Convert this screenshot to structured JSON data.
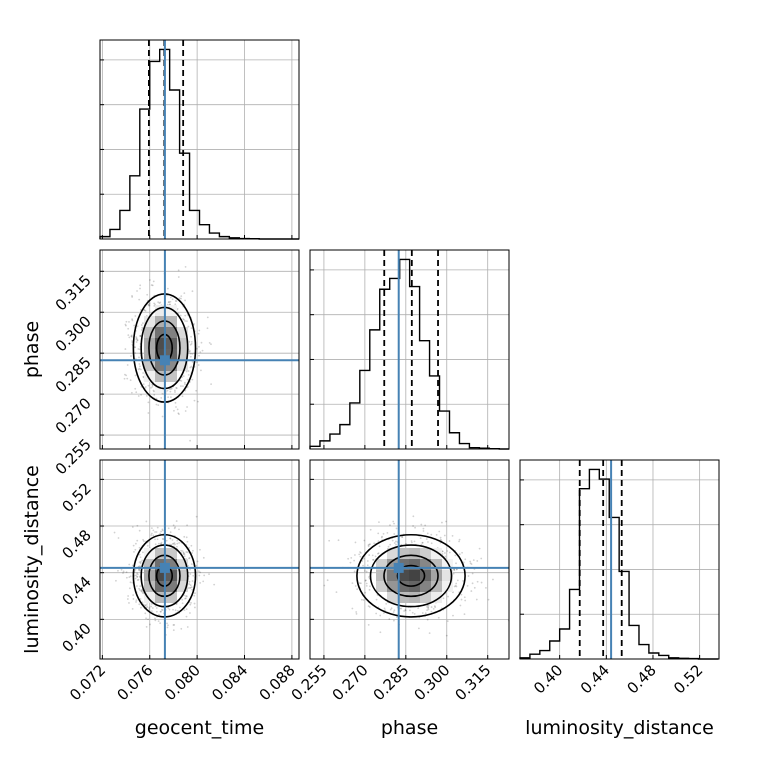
{
  "figure": {
    "type": "corner"
  },
  "colors": {
    "truth": "#4682b4",
    "hist": "#000000",
    "grid": "#b0b0b0",
    "quantile": "#000000",
    "contour": "#000000"
  },
  "chart_data": {
    "type": "corner",
    "parameters": [
      "geocent_time",
      "phase",
      "luminosity_distance"
    ],
    "axis_labels": {
      "geocent_time": "geocent_time",
      "phase": "phase",
      "luminosity_distance": "luminosity_distance"
    },
    "ranges": {
      "geocent_time": [
        0.0718,
        0.0886
      ],
      "phase": [
        0.2499,
        0.3228
      ],
      "luminosity_distance": [
        0.366,
        0.5366
      ]
    },
    "ticks": {
      "geocent_time": [
        "0.072",
        "0.076",
        "0.080",
        "0.084",
        "0.088"
      ],
      "phase": [
        "0.255",
        "0.270",
        "0.285",
        "0.300",
        "0.315"
      ],
      "luminosity_distance": [
        "0.40",
        "0.44",
        "0.48",
        "0.52"
      ]
    },
    "truths": {
      "geocent_time": 0.07728,
      "phase": 0.2824,
      "luminosity_distance": 0.4441
    },
    "quantiles": {
      "geocent_time": [
        0.07593,
        0.07723,
        0.07882
      ],
      "phase": [
        0.2771,
        0.2872,
        0.2968
      ],
      "luminosity_distance": [
        0.4172,
        0.4373,
        0.4532
      ]
    },
    "histograms": {
      "geocent_time": {
        "edges": [
          0.0718,
          0.07264,
          0.07348,
          0.07432,
          0.07516,
          0.076,
          0.07684,
          0.07768,
          0.07852,
          0.07936,
          0.0802,
          0.08104,
          0.08188,
          0.08272,
          0.08356,
          0.0844,
          0.08524,
          0.08608,
          0.08692,
          0.08776,
          0.0886
        ],
        "counts": [
          10,
          40,
          120,
          265,
          545,
          745,
          795,
          625,
          360,
          120,
          60,
          25,
          10,
          5,
          2,
          1,
          0,
          0,
          0,
          0
        ]
      },
      "phase": {
        "edges": [
          0.2499,
          0.25355,
          0.2572,
          0.26085,
          0.2645,
          0.26815,
          0.2718,
          0.27545,
          0.2791,
          0.28275,
          0.2864,
          0.29005,
          0.2937,
          0.29735,
          0.301,
          0.30465,
          0.3083,
          0.31195,
          0.3156,
          0.31925,
          0.3229
        ],
        "counts": [
          10,
          30,
          55,
          90,
          170,
          290,
          440,
          590,
          630,
          700,
          600,
          400,
          270,
          140,
          60,
          20,
          5,
          3,
          1,
          0
        ]
      },
      "luminosity_distance": {
        "edges": [
          0.366,
          0.3745,
          0.383,
          0.3915,
          0.4,
          0.4085,
          0.417,
          0.4255,
          0.434,
          0.4425,
          0.451,
          0.4595,
          0.468,
          0.4765,
          0.485,
          0.4935,
          0.502,
          0.5105,
          0.519,
          0.5275,
          0.536
        ],
        "counts": [
          5,
          20,
          35,
          75,
          125,
          290,
          710,
          790,
          750,
          590,
          365,
          140,
          60,
          25,
          15,
          5,
          3,
          2,
          0,
          0
        ]
      }
    },
    "panels_2d": [
      {
        "x": "geocent_time",
        "y": "phase",
        "center": [
          0.07724,
          0.2869
        ],
        "sd": [
          0.00131,
          0.0099
        ],
        "rho": 0.0
      },
      {
        "x": "geocent_time",
        "y": "luminosity_distance",
        "center": [
          0.07724,
          0.4373
        ],
        "sd": [
          0.00131,
          0.0176
        ],
        "rho": 0.0
      },
      {
        "x": "phase",
        "y": "luminosity_distance",
        "center": [
          0.2869,
          0.4373
        ],
        "sd": [
          0.0099,
          0.0176
        ],
        "rho": 0.0
      }
    ],
    "contour_levels": [
      0.118,
      0.393,
      0.675,
      0.865
    ],
    "grid": true,
    "legend": "none"
  }
}
